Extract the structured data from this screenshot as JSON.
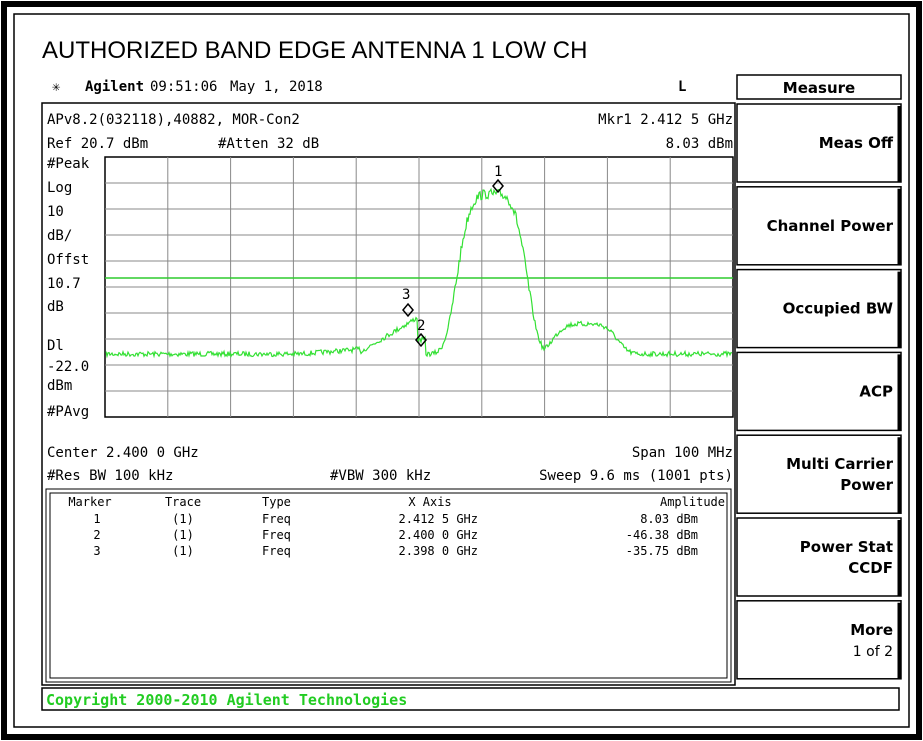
{
  "title": "AUTHORIZED BAND EDGE ANTENNA 1 LOW CH",
  "header": {
    "brand": "Agilent",
    "time": "09:51:06",
    "date": "May 1, 2018",
    "mode": "L"
  },
  "info": {
    "line1_left": "APv8.2(032118),40882, MOR-Con2",
    "line1_right": "Mkr1  2.412 5 GHz",
    "ref": "Ref 20.7 dBm",
    "atten": "#Atten 32 dB",
    "mkr_amp": "8.03 dBm"
  },
  "left_labels": [
    "#Peak",
    "Log",
    "10",
    "dB/",
    "Offst",
    "10.7",
    "dB",
    "Dl",
    "-22.0",
    "dBm",
    "#PAvg"
  ],
  "footer": {
    "center": "Center 2.400 0 GHz",
    "span": "Span 100 MHz",
    "rbw": "#Res BW 100 kHz",
    "vbw": "#VBW 300 kHz",
    "sweep": "Sweep 9.6 ms (1001 pts)"
  },
  "marker_labels": [
    "1",
    "2",
    "3"
  ],
  "table": {
    "header": [
      "Marker",
      "Trace",
      "Type",
      "X Axis",
      "Amplitude"
    ],
    "rows": [
      [
        "1",
        "(1)",
        "Freq",
        "2.412 5 GHz",
        "8.03 dBm"
      ],
      [
        "2",
        "(1)",
        "Freq",
        "2.400 0 GHz",
        "-46.38 dBm"
      ],
      [
        "3",
        "(1)",
        "Freq",
        "2.398 0 GHz",
        "-35.75 dBm"
      ]
    ]
  },
  "softkeys": {
    "header": "Measure",
    "keys": [
      {
        "lines": [
          "Meas Off"
        ]
      },
      {
        "lines": [
          "Channel Power"
        ]
      },
      {
        "lines": [
          "Occupied BW"
        ]
      },
      {
        "lines": [
          "ACP"
        ]
      },
      {
        "lines": [
          "Multi Carrier",
          "Power"
        ]
      },
      {
        "lines": [
          "Power Stat",
          "CCDF"
        ]
      },
      {
        "lines": [
          "More",
          "1 of 2"
        ]
      }
    ]
  },
  "copyright": "Copyright 2000-2010 Agilent Technologies"
}
